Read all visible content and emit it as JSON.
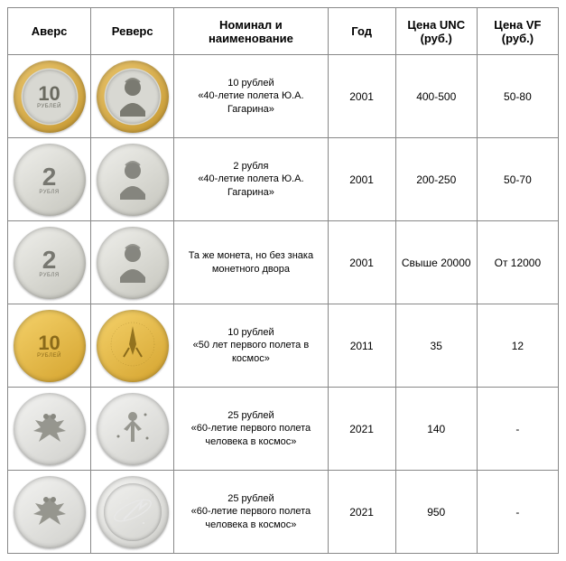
{
  "table": {
    "headers": {
      "obverse": "Аверс",
      "reverse": "Реверс",
      "name": "Номинал и наименование",
      "year": "Год",
      "price_unc": "Цена UNC (руб.)",
      "price_vf": "Цена VF (руб.)"
    },
    "rows": [
      {
        "obverse": {
          "style": "bimetal",
          "denom": "10",
          "denom_size": 22,
          "sub": "РУБЛЕЙ",
          "color_text": "#6a6a60"
        },
        "reverse": {
          "style": "bimetal",
          "design": "portrait",
          "color_text": "#6a6a60"
        },
        "name": "10 рублей\n«40-летие полета Ю.А. Гагарина»",
        "year": "2001",
        "price_unc": "400-500",
        "price_vf": "50-80"
      },
      {
        "obverse": {
          "style": "silver",
          "denom": "2",
          "denom_size": 28,
          "sub": "РУБЛЯ",
          "color_text": "#777770"
        },
        "reverse": {
          "style": "silver",
          "design": "portrait",
          "color_text": "#777770"
        },
        "name": "2 рубля\n«40-летие полета Ю.А. Гагарина»",
        "year": "2001",
        "price_unc": "200-250",
        "price_vf": "50-70"
      },
      {
        "obverse": {
          "style": "silver",
          "denom": "2",
          "denom_size": 28,
          "sub": "РУБЛЯ",
          "color_text": "#777770"
        },
        "reverse": {
          "style": "silver",
          "design": "portrait",
          "color_text": "#777770"
        },
        "name": "Та же монета, но без знака монетного двора",
        "year": "2001",
        "price_unc": "Свыше 20000",
        "price_vf": "От 12000"
      },
      {
        "obverse": {
          "style": "gold",
          "denom": "10",
          "denom_size": 22,
          "sub": "РУБЛЕЙ",
          "color_text": "#8a6a1a"
        },
        "reverse": {
          "style": "gold",
          "design": "rocket",
          "color_text": "#8a6a1a"
        },
        "name": "10 рублей\n«50 лет первого полета в космос»",
        "year": "2011",
        "price_unc": "35",
        "price_vf": "12"
      },
      {
        "obverse": {
          "style": "steel",
          "denom": "",
          "denom_size": 0,
          "sub": "",
          "design": "eagle",
          "color_text": "#888880"
        },
        "reverse": {
          "style": "steel",
          "design": "figure",
          "color_text": "#888880"
        },
        "name": "25 рублей\n«60-летие первого полета человека в космос»",
        "year": "2021",
        "price_unc": "140",
        "price_vf": "-"
      },
      {
        "obverse": {
          "style": "steel",
          "denom": "",
          "denom_size": 0,
          "sub": "",
          "design": "eagle",
          "color_text": "#888880"
        },
        "reverse": {
          "style": "spaceblue",
          "design": "spaceblue",
          "color_text": "#e8e8e8"
        },
        "name": "25 рублей\n«60-летие первого полета человека в космос»",
        "year": "2021",
        "price_unc": "950",
        "price_vf": "-"
      }
    ]
  },
  "colors": {
    "border": "#888888",
    "text": "#000000",
    "background": "#ffffff"
  }
}
